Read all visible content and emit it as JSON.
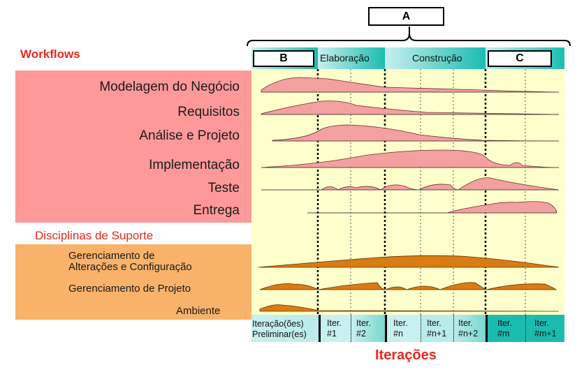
{
  "header": {
    "bracket_label": "A",
    "workflows_title": "Workflows",
    "support_title": "Disciplinas de Suporte",
    "iterations_title": "Iterações"
  },
  "phases": {
    "box_b": "B",
    "elaboration": "Elaboração",
    "construction": "Construção",
    "box_c": "C"
  },
  "workflows": [
    "Modelagem do Negócio",
    "Requisitos",
    "Análise e Projeto",
    "Implementação",
    "Teste",
    "Entrega"
  ],
  "support": {
    "config_line1": "Gerenciamento de",
    "config_line2": "Alterações e Configuração",
    "project": "Gerenciamento de Projeto",
    "environment": "Ambiente"
  },
  "iterations": [
    {
      "line1": "Iteração(ões)",
      "line2": "Preliminar(es)"
    },
    {
      "line1": "Iter.",
      "line2": "#1"
    },
    {
      "line1": "Iter.",
      "line2": "#2"
    },
    {
      "line1": "Iter.",
      "line2": "#n"
    },
    {
      "line1": "Iter.",
      "line2": "#n+1"
    },
    {
      "line1": "Iter.",
      "line2": "#n+2"
    },
    {
      "line1": "Iter.",
      "line2": "#m"
    },
    {
      "line1": "Iter.",
      "line2": "#m+1"
    }
  ],
  "colors": {
    "workflow_bg": "#ff9999",
    "support_bg": "#f9b26a",
    "chart_bg": "#ffffcc",
    "workflow_fill": "#f4a0a0",
    "support_fill": "#d97c12",
    "teal_dark": "#1bbcb0",
    "teal_light": "#c8f0ee",
    "title_red": "#e8281e"
  }
}
